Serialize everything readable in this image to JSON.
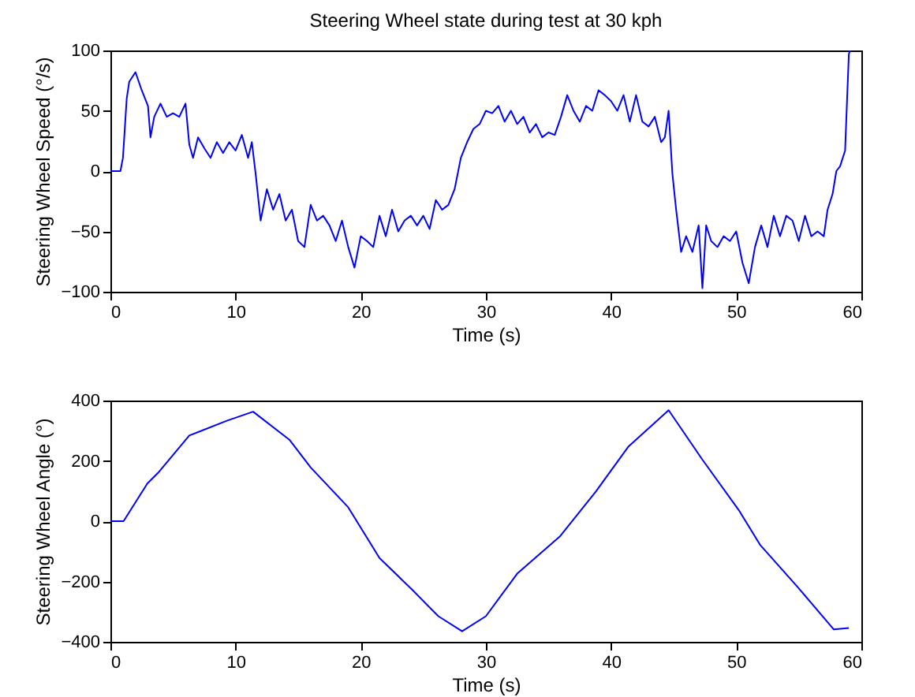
{
  "chart_data": [
    {
      "type": "line",
      "title": "Steering Wheel state during test at 30 kph",
      "xlabel": "Time (s)",
      "ylabel": "Steering Wheel Speed (°/s)",
      "xlim": [
        0,
        60
      ],
      "ylim": [
        -100,
        100
      ],
      "xticks": [
        0,
        10,
        20,
        30,
        40,
        50,
        60
      ],
      "yticks": [
        -100,
        -50,
        0,
        50,
        100
      ],
      "x": [
        0,
        0.8,
        1,
        1.3,
        1.5,
        2,
        2.5,
        3,
        3.2,
        3.5,
        4,
        4.5,
        5,
        5.5,
        6,
        6.3,
        6.6,
        7,
        7.5,
        8,
        8.5,
        9,
        9.5,
        10,
        10.5,
        11,
        11.3,
        11.6,
        12,
        12.5,
        13,
        13.5,
        14,
        14.5,
        15,
        15.5,
        16,
        16.5,
        17,
        17.5,
        18,
        18.5,
        19,
        19.5,
        20,
        20.5,
        21,
        21.5,
        22,
        22.5,
        23,
        23.5,
        24,
        24.5,
        25,
        25.5,
        26,
        26.5,
        27,
        27.5,
        28,
        28.5,
        29,
        29.5,
        30,
        30.5,
        31,
        31.5,
        32,
        32.5,
        33,
        33.5,
        34,
        34.5,
        35,
        35.5,
        36,
        36.5,
        37,
        37.5,
        38,
        38.5,
        39,
        39.5,
        40,
        40.5,
        41,
        41.5,
        42,
        42.5,
        43,
        43.5,
        44,
        44.3,
        44.6,
        44.9,
        45.2,
        45.6,
        46,
        46.5,
        47,
        47.3,
        47.6,
        48,
        48.5,
        49,
        49.5,
        50,
        50.5,
        51,
        51.5,
        52,
        52.5,
        53,
        53.5,
        54,
        54.5,
        55,
        55.5,
        56,
        56.5,
        57,
        57.3,
        57.7,
        58,
        58.3,
        58.7,
        59,
        59.1
      ],
      "series": [
        {
          "color": "#0000ff",
          "values": [
            0,
            0,
            11,
            60,
            74,
            82,
            67,
            54,
            28,
            45,
            56,
            45,
            48,
            45,
            56,
            22,
            11,
            28,
            19,
            11,
            24,
            15,
            24,
            17,
            30,
            11,
            24,
            -2,
            -41,
            -15,
            -32,
            -19,
            -41,
            -32,
            -58,
            -63,
            -28,
            -41,
            -37,
            -45,
            -58,
            -41,
            -63,
            -80,
            -54,
            -58,
            -63,
            -37,
            -54,
            -32,
            -50,
            -41,
            -37,
            -45,
            -37,
            -48,
            -24,
            -32,
            -28,
            -15,
            11,
            24,
            35,
            39,
            50,
            48,
            54,
            41,
            50,
            39,
            45,
            32,
            39,
            28,
            32,
            30,
            45,
            63,
            50,
            41,
            54,
            50,
            67,
            63,
            58,
            50,
            63,
            41,
            63,
            41,
            37,
            45,
            24,
            28,
            50,
            -2,
            -32,
            -67,
            -54,
            -67,
            -45,
            -97,
            -45,
            -58,
            -63,
            -54,
            -58,
            -50,
            -76,
            -93,
            -63,
            -45,
            -63,
            -37,
            -54,
            -37,
            -41,
            -58,
            -37,
            -54,
            -50,
            -54,
            -32,
            -19,
            0,
            4,
            17,
            97,
            100
          ]
        }
      ]
    },
    {
      "type": "line",
      "xlabel": "Time (s)",
      "ylabel": "Steering Wheel Angle (°)",
      "xlim": [
        0,
        60
      ],
      "ylim": [
        -400,
        400
      ],
      "xticks": [
        0,
        10,
        20,
        30,
        40,
        50,
        60
      ],
      "yticks": [
        -400,
        -200,
        0,
        200,
        400
      ],
      "x": [
        0,
        1.05,
        2.95,
        3.8,
        6.3,
        9.3,
        11.4,
        14.3,
        16,
        19,
        21.5,
        24.1,
        26.2,
        28.1,
        30,
        32.5,
        35.9,
        38.8,
        41.4,
        44.6,
        47.3,
        50.2,
        51.9,
        54.9,
        57.8,
        59
      ],
      "series": [
        {
          "color": "#0000ff",
          "values": [
            0,
            0,
            125,
            160,
            284,
            333,
            363,
            270,
            178,
            46,
            -122,
            -227,
            -315,
            -365,
            -315,
            -174,
            -51,
            99,
            248,
            368,
            204,
            37,
            -78,
            -218,
            -359,
            -354
          ]
        }
      ]
    }
  ]
}
